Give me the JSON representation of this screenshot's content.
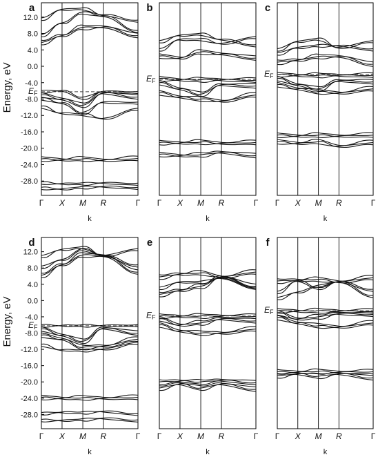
{
  "chart_data": {
    "type": "line",
    "ylabel": "Energy, eV",
    "yticks": [
      "12.0",
      "8.0",
      "4.0",
      "0.0",
      "-4.0",
      "-8.0",
      "-12.0",
      "-16.0",
      "-20.0",
      "-24.0",
      "-28.0"
    ],
    "ytick_values": [
      12,
      8,
      4,
      0,
      -4,
      -8,
      -12,
      -16,
      -20,
      -24,
      -28
    ],
    "ylim": [
      -31.5,
      15.5
    ],
    "xlabel": "k",
    "kpoints": [
      "Γ",
      "X",
      "M",
      "R",
      "Γ"
    ],
    "fermi_symbol": "E",
    "fermi_subscript": "F",
    "panels": [
      {
        "letter": "a",
        "show_yticks": true,
        "fermi": -6.2,
        "groups": [
          {
            "nodes": [
              11.5,
              13.8,
              14.0,
              12.5,
              11.0
            ],
            "count": 2
          },
          {
            "nodes": [
              7.5,
              10.5,
              13.0,
              12.2,
              8.5
            ],
            "count": 2
          },
          {
            "nodes": [
              5.8,
              7.5,
              9.5,
              9.6,
              7.5
            ],
            "count": 3
          },
          {
            "nodes": [
              -6.2,
              -6.0,
              -7.8,
              -6.2,
              -6.4
            ],
            "count": 2
          },
          {
            "nodes": [
              -7.0,
              -8.0,
              -9.5,
              -6.5,
              -7.5
            ],
            "count": 3
          },
          {
            "nodes": [
              -8.0,
              -9.0,
              -11.5,
              -8.8,
              -9.0
            ],
            "count": 2
          },
          {
            "nodes": [
              -10.0,
              -11.5,
              -11.8,
              -12.8,
              -10.5
            ],
            "count": 2
          },
          {
            "nodes": [
              -22.6,
              -22.8,
              -22.6,
              -22.9,
              -22.5
            ],
            "count": 3
          },
          {
            "nodes": [
              -28.5,
              -28.7,
              -28.7,
              -28.5,
              -28.8
            ],
            "count": 2
          },
          {
            "nodes": [
              -29.8,
              -30.0,
              -29.6,
              -29.4,
              -29.8
            ],
            "count": 2
          }
        ]
      },
      {
        "letter": "b",
        "show_yticks": false,
        "fermi": -3.2,
        "groups": [
          {
            "nodes": [
              6.0,
              7.5,
              7.8,
              6.5,
              5.0
            ],
            "count": 2
          },
          {
            "nodes": [
              4.0,
              6.5,
              6.5,
              5.5,
              7.0
            ],
            "count": 2
          },
          {
            "nodes": [
              2.5,
              2.0,
              3.5,
              3.0,
              2.0
            ],
            "count": 3
          },
          {
            "nodes": [
              -3.0,
              -3.3,
              -3.3,
              -3.3,
              -3.4
            ],
            "count": 3
          },
          {
            "nodes": [
              -4.0,
              -5.5,
              -6.8,
              -4.5,
              -4.8
            ],
            "count": 3
          },
          {
            "nodes": [
              -6.5,
              -7.5,
              -8.0,
              -8.5,
              -7.0
            ],
            "count": 3
          },
          {
            "nodes": [
              -18.6,
              -18.7,
              -18.5,
              -18.8,
              -18.6
            ],
            "count": 3
          },
          {
            "nodes": [
              -21.5,
              -21.8,
              -21.6,
              -21.0,
              -21.8
            ],
            "count": 3
          }
        ]
      },
      {
        "letter": "c",
        "show_yticks": false,
        "fermi": -2.0,
        "groups": [
          {
            "nodes": [
              4.0,
              6.0,
              6.6,
              4.5,
              6.0
            ],
            "count": 2
          },
          {
            "nodes": [
              3.0,
              4.5,
              5.0,
              5.0,
              4.0
            ],
            "count": 2
          },
          {
            "nodes": [
              1.0,
              1.5,
              2.4,
              2.4,
              0.5
            ],
            "count": 3
          },
          {
            "nodes": [
              -2.0,
              -2.2,
              -2.2,
              -2.2,
              -2.2
            ],
            "count": 3
          },
          {
            "nodes": [
              -3.0,
              -4.5,
              -5.5,
              -3.5,
              -3.8
            ],
            "count": 3
          },
          {
            "nodes": [
              -4.5,
              -5.5,
              -6.2,
              -6.5,
              -5.5
            ],
            "count": 3
          },
          {
            "nodes": [
              -16.8,
              -17.0,
              -16.8,
              -17.0,
              -16.8
            ],
            "count": 3
          },
          {
            "nodes": [
              -18.4,
              -18.8,
              -18.4,
              -19.5,
              -18.6
            ],
            "count": 3
          }
        ]
      },
      {
        "letter": "d",
        "show_yticks": true,
        "fermi": -6.2,
        "groups": [
          {
            "nodes": [
              10.8,
              12.5,
              13.0,
              11.0,
              12.5
            ],
            "count": 2
          },
          {
            "nodes": [
              8.2,
              10.0,
              12.5,
              11.0,
              8.5
            ],
            "count": 2
          },
          {
            "nodes": [
              6.2,
              8.8,
              11.2,
              11.0,
              7.0
            ],
            "count": 3
          },
          {
            "nodes": [
              -6.2,
              -6.2,
              -6.2,
              -6.2,
              -6.2
            ],
            "count": 2
          },
          {
            "nodes": [
              -7.0,
              -8.5,
              -10.0,
              -6.8,
              -8.0
            ],
            "count": 3
          },
          {
            "nodes": [
              -8.5,
              -9.5,
              -11.5,
              -11.2,
              -9.5
            ],
            "count": 3
          },
          {
            "nodes": [
              -11.0,
              -12.2,
              -12.3,
              -12.0,
              -10.5
            ],
            "count": 2
          },
          {
            "nodes": [
              -23.8,
              -24.0,
              -23.9,
              -24.0,
              -23.8
            ],
            "count": 3
          },
          {
            "nodes": [
              -27.8,
              -27.5,
              -27.6,
              -27.3,
              -28.0
            ],
            "count": 2
          },
          {
            "nodes": [
              -29.5,
              -29.5,
              -29.3,
              -29.0,
              -29.6
            ],
            "count": 2
          }
        ]
      },
      {
        "letter": "e",
        "show_yticks": false,
        "fermi": -3.8,
        "groups": [
          {
            "nodes": [
              5.8,
              6.5,
              6.8,
              5.8,
              7.0
            ],
            "count": 3
          },
          {
            "nodes": [
              3.0,
              4.5,
              4.5,
              5.5,
              3.0
            ],
            "count": 2
          },
          {
            "nodes": [
              1.5,
              2.5,
              3.5,
              5.8,
              3.5
            ],
            "count": 3
          },
          {
            "nodes": [
              -3.8,
              -3.9,
              -3.8,
              -3.8,
              -3.9
            ],
            "count": 3
          },
          {
            "nodes": [
              -4.5,
              -6.0,
              -5.5,
              -4.5,
              -5.0
            ],
            "count": 3
          },
          {
            "nodes": [
              -6.0,
              -7.5,
              -8.0,
              -8.0,
              -7.0
            ],
            "count": 3
          },
          {
            "nodes": [
              -20.0,
              -19.8,
              -20.0,
              -19.6,
              -20.2
            ],
            "count": 3
          },
          {
            "nodes": [
              -21.5,
              -20.5,
              -21.5,
              -20.5,
              -21.8
            ],
            "count": 3
          }
        ]
      },
      {
        "letter": "f",
        "show_yticks": false,
        "fermi": -2.5,
        "groups": [
          {
            "nodes": [
              4.8,
              5.0,
              5.2,
              4.6,
              5.6
            ],
            "count": 3
          },
          {
            "nodes": [
              2.0,
              4.8,
              3.0,
              4.6,
              2.5
            ],
            "count": 2
          },
          {
            "nodes": [
              0.5,
              2.0,
              3.5,
              4.6,
              1.0
            ],
            "count": 2
          },
          {
            "nodes": [
              -2.5,
              -2.6,
              -2.5,
              -2.6,
              -2.6
            ],
            "count": 3
          },
          {
            "nodes": [
              -3.0,
              -4.5,
              -4.0,
              -3.2,
              -3.4
            ],
            "count": 3
          },
          {
            "nodes": [
              -4.2,
              -5.5,
              -6.2,
              -6.5,
              -5.5
            ],
            "count": 3
          },
          {
            "nodes": [
              -17.5,
              -17.6,
              -17.4,
              -17.6,
              -17.5
            ],
            "count": 3
          },
          {
            "nodes": [
              -18.5,
              -18.0,
              -18.6,
              -18.0,
              -19.0
            ],
            "count": 3
          }
        ]
      }
    ]
  }
}
